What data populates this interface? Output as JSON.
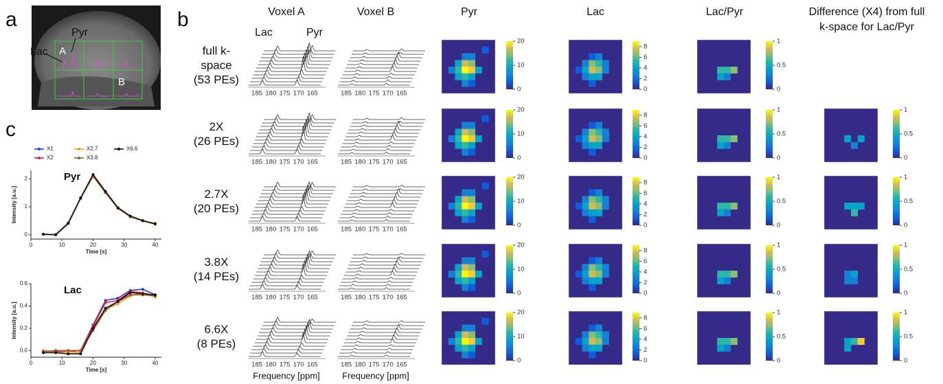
{
  "panel_labels": [
    "a",
    "b",
    "c"
  ],
  "panel_a": {
    "labels": [
      "Pyr",
      "Lac",
      "A",
      "B"
    ]
  },
  "columns": [
    "Voxel A",
    "Voxel B",
    "Pyr",
    "Lac",
    "Lac/Pyr",
    "Difference (X4) from full",
    "k-space for Lac/Pyr"
  ],
  "peak_labels": [
    "Lac",
    "Pyr"
  ],
  "rows": [
    [
      "full k-",
      "space",
      "(53 PEs)"
    ],
    [
      "2X",
      "(26 PEs)"
    ],
    [
      "2.7X",
      "(20 PEs)"
    ],
    [
      "3.8X",
      "(14 PEs)"
    ],
    [
      "6.6X",
      "(8 PEs)"
    ]
  ],
  "freq_ticks": [
    185,
    180,
    175,
    170,
    165
  ],
  "freq_label": "Frequency [ppm]",
  "colorbars": {
    "pyr": {
      "lim": [
        0,
        20
      ],
      "ticks": [
        0,
        10,
        20
      ]
    },
    "lac": {
      "lim": [
        0,
        9
      ],
      "ticks": [
        0,
        2,
        4,
        6,
        8
      ]
    },
    "ratio": {
      "lim": [
        0,
        1
      ],
      "ticks": [
        0,
        0.5,
        1
      ]
    }
  },
  "chart_data": [
    {
      "type": "line",
      "title": "Pyr",
      "x_label": "Time [s]",
      "y_label": "Intensity [a.u.]",
      "x": [
        4,
        8,
        12,
        16,
        20,
        24,
        28,
        32,
        36,
        40
      ],
      "xlim": [
        0,
        42
      ],
      "xticks": [
        0,
        10,
        20,
        30,
        40
      ],
      "ylim": [
        -0.15,
        2.3
      ],
      "yticks": [
        0,
        1,
        2
      ],
      "series": [
        {
          "name": "X1",
          "color": "#1f3fe0",
          "values": [
            0.02,
            0,
            0.4,
            1.3,
            2.1,
            1.5,
            0.95,
            0.65,
            0.5,
            0.38
          ]
        },
        {
          "name": "X2",
          "color": "#e8202a",
          "values": [
            0.02,
            0,
            0.42,
            1.32,
            2.12,
            1.52,
            0.96,
            0.66,
            0.5,
            0.39
          ]
        },
        {
          "name": "X2.7",
          "color": "#f39a1e",
          "values": [
            0.01,
            0,
            0.41,
            1.31,
            2.08,
            1.5,
            0.94,
            0.64,
            0.49,
            0.38
          ]
        },
        {
          "name": "X3.8",
          "color": "#9a5a30",
          "values": [
            0.02,
            0,
            0.4,
            1.3,
            2.1,
            1.51,
            0.95,
            0.65,
            0.5,
            0.38
          ]
        },
        {
          "name": "X6.6",
          "color": "#111111",
          "values": [
            0.02,
            0.01,
            0.42,
            1.32,
            2.15,
            1.55,
            0.97,
            0.67,
            0.51,
            0.4
          ]
        }
      ]
    },
    {
      "type": "line",
      "title": "Lac",
      "x_label": "Time [s]",
      "y_label": "Intensity [a.u.]",
      "x": [
        4,
        8,
        12,
        16,
        20,
        24,
        28,
        32,
        36,
        40
      ],
      "xlim": [
        0,
        42
      ],
      "xticks": [
        0,
        10,
        20,
        30,
        40
      ],
      "ylim": [
        -0.06,
        0.6
      ],
      "yticks": [
        {
          "value": 0,
          "label": "0.0"
        },
        0.2,
        0.4,
        0.6
      ],
      "series": [
        {
          "color": "#1f3fe0",
          "values": [
            0,
            -0.01,
            0,
            0,
            0.23,
            0.45,
            0.47,
            0.54,
            0.55,
            0.5
          ]
        },
        {
          "color": "#e8202a",
          "values": [
            -0.01,
            0,
            -0.01,
            0,
            0.22,
            0.43,
            0.45,
            0.53,
            0.52,
            0.49
          ]
        },
        {
          "color": "#f39a1e",
          "values": [
            0,
            -0.02,
            -0.01,
            -0.02,
            0.2,
            0.37,
            0.42,
            0.49,
            0.52,
            0.48
          ]
        },
        {
          "color": "#9a5a30",
          "values": [
            -0.01,
            0,
            0,
            0,
            0.18,
            0.36,
            0.44,
            0.5,
            0.5,
            0.49
          ]
        },
        {
          "color": "#111111",
          "values": [
            -0.02,
            -0.02,
            -0.03,
            -0.03,
            0.2,
            0.38,
            0.44,
            0.52,
            0.51,
            0.5
          ]
        }
      ]
    }
  ]
}
